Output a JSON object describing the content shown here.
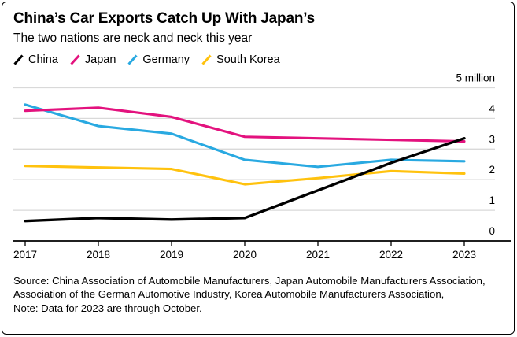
{
  "header": {
    "title": "China’s Car Exports Catch Up With Japan’s",
    "subtitle": "The two nations are neck and neck this year"
  },
  "legend": [
    {
      "label": "China",
      "color": "#000000"
    },
    {
      "label": "Japan",
      "color": "#E3127E"
    },
    {
      "label": "Germany",
      "color": "#29A9E1"
    },
    {
      "label": "South Korea",
      "color": "#FFC20E"
    }
  ],
  "footer": {
    "source": "Source: China Association of Automobile Manufacturers, Japan Automobile Manufacturers Association, Association of the German Automotive Industry, Korea Automobile Manufacturers Association,",
    "note": "Note: Data for 2023 are through October."
  },
  "chart_data": {
    "type": "line",
    "title": "China’s Car Exports Catch Up With Japan’s",
    "subtitle": "The two nations are neck and neck this year",
    "x": [
      2017,
      2018,
      2019,
      2020,
      2021,
      2022,
      2023
    ],
    "series": [
      {
        "name": "China",
        "color": "#000000",
        "values": [
          0.65,
          0.75,
          0.7,
          0.75,
          1.65,
          2.55,
          3.35
        ]
      },
      {
        "name": "Japan",
        "color": "#E3127E",
        "values": [
          4.25,
          4.35,
          4.05,
          3.4,
          3.35,
          3.3,
          3.25
        ]
      },
      {
        "name": "Germany",
        "color": "#29A9E1",
        "values": [
          4.45,
          3.75,
          3.5,
          2.65,
          2.42,
          2.65,
          2.6
        ]
      },
      {
        "name": "South Korea",
        "color": "#FFC20E",
        "values": [
          2.45,
          2.4,
          2.35,
          1.85,
          2.05,
          2.28,
          2.2
        ]
      }
    ],
    "unit": "million",
    "ylabel_top": "5 million",
    "yticks": [
      0,
      1,
      2,
      3,
      4,
      5
    ],
    "ylim": [
      0,
      5
    ],
    "grid": true,
    "legend_position": "top",
    "note": "2023 data through October",
    "style": {
      "grid_color": "#D9D9D9",
      "axis_color": "#000000",
      "tick_label_color": "#000000"
    }
  }
}
